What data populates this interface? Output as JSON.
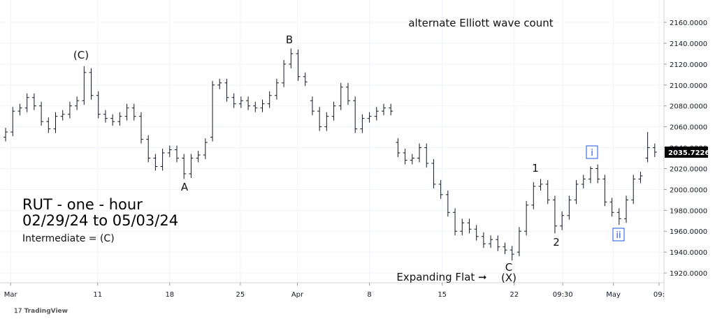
{
  "chart_data": {
    "type": "ohlc",
    "title": "alternate Elliott wave count",
    "subtitle": [
      "RUT - one - hour",
      "02/29/24 to 05/03/24",
      "Intermediate = (C)"
    ],
    "annotations": [
      "(C)",
      "A",
      "B",
      "C",
      "Expanding Flat ➞",
      "(X)",
      "1",
      "2",
      "i",
      "ii"
    ],
    "watermark": "TradingView",
    "color": "#131722",
    "grid": true,
    "x": [
      0,
      1,
      2,
      3,
      4,
      5,
      6,
      7,
      8,
      9,
      10,
      11,
      12,
      13,
      14,
      15,
      16,
      17,
      18,
      19,
      20,
      21,
      22,
      23,
      24,
      25,
      26,
      27,
      28,
      29,
      30,
      31,
      32,
      33,
      34,
      35,
      36,
      37,
      38,
      39,
      40,
      41,
      42,
      43,
      44,
      45,
      46,
      47,
      48,
      49,
      50,
      51,
      52,
      53,
      54,
      55,
      56,
      57,
      58,
      59,
      60,
      61,
      62,
      63,
      64,
      65,
      66,
      67,
      68,
      69,
      70,
      71,
      72,
      73,
      74,
      75,
      76,
      77,
      78,
      79,
      80,
      81,
      82,
      83,
      84,
      85,
      86,
      87,
      88,
      89,
      90,
      91
    ],
    "open": [
      2050,
      2055,
      2075,
      2078,
      2088,
      2080,
      2065,
      2058,
      2070,
      2072,
      2080,
      2085,
      2112,
      2090,
      2072,
      2068,
      2065,
      2070,
      2078,
      2070,
      2048,
      2030,
      2022,
      2035,
      2038,
      2030,
      2015,
      2030,
      2033,
      2050,
      2100,
      2102,
      2088,
      2082,
      2085,
      2080,
      2078,
      2082,
      2090,
      2102,
      2120,
      2130,
      2108,
      2085,
      2075,
      2060,
      2070,
      2080,
      2098,
      2085,
      2058,
      2068,
      2070,
      2075,
      2078,
      2045,
      2035,
      2028,
      2030,
      2040,
      2025,
      2005,
      1995,
      1978,
      1960,
      1968,
      1962,
      1955,
      1948,
      1952,
      1945,
      1942,
      1940,
      1960,
      1985,
      2003,
      2005,
      1990,
      1965,
      1975,
      1990,
      2005,
      2010,
      2020,
      2010,
      1988,
      1978,
      1972,
      1990,
      2010,
      2030,
      2040
    ],
    "high": [
      2059,
      2079,
      2082,
      2092,
      2092,
      2084,
      2069,
      2074,
      2076,
      2084,
      2089,
      2118,
      2116,
      2094,
      2076,
      2072,
      2074,
      2082,
      2082,
      2074,
      2052,
      2034,
      2039,
      2042,
      2042,
      2034,
      2034,
      2037,
      2049,
      2104,
      2106,
      2106,
      2092,
      2089,
      2089,
      2084,
      2086,
      2094,
      2106,
      2124,
      2135,
      2134,
      2112,
      2089,
      2079,
      2074,
      2084,
      2102,
      2102,
      2089,
      2072,
      2074,
      2079,
      2082,
      2082,
      2049,
      2039,
      2034,
      2044,
      2044,
      2029,
      2009,
      1999,
      1982,
      1972,
      1972,
      1966,
      1959,
      1956,
      1956,
      1949,
      1946,
      1964,
      1989,
      2007,
      2010,
      2009,
      1994,
      1979,
      1994,
      2009,
      2014,
      2022,
      2024,
      2014,
      1992,
      1982,
      1994,
      2014,
      2017,
      2055,
      2044
    ],
    "low": [
      2046,
      2051,
      2071,
      2074,
      2076,
      2061,
      2054,
      2054,
      2066,
      2068,
      2076,
      2081,
      2086,
      2068,
      2064,
      2061,
      2061,
      2066,
      2066,
      2044,
      2026,
      2018,
      2018,
      2031,
      2026,
      2010,
      2011,
      2026,
      2029,
      2046,
      2096,
      2084,
      2078,
      2078,
      2076,
      2074,
      2074,
      2078,
      2086,
      2098,
      2116,
      2104,
      2099,
      2071,
      2056,
      2056,
      2066,
      2076,
      2081,
      2054,
      2054,
      2064,
      2066,
      2071,
      2071,
      2031,
      2024,
      2024,
      2026,
      2021,
      2001,
      1991,
      1974,
      1956,
      1956,
      1958,
      1951,
      1944,
      1944,
      1941,
      1938,
      1932,
      1936,
      1956,
      1981,
      1999,
      1986,
      1958,
      1961,
      1971,
      1986,
      2001,
      2006,
      2006,
      1984,
      1974,
      1966,
      1968,
      1986,
      2006,
      2026,
      2031
    ],
    "close": [
      2055,
      2075,
      2078,
      2088,
      2080,
      2065,
      2058,
      2070,
      2072,
      2080,
      2085,
      2112,
      2090,
      2072,
      2068,
      2065,
      2070,
      2078,
      2070,
      2048,
      2030,
      2022,
      2035,
      2038,
      2030,
      2015,
      2030,
      2033,
      2045,
      2100,
      2102,
      2088,
      2082,
      2085,
      2080,
      2078,
      2082,
      2090,
      2102,
      2120,
      2130,
      2108,
      2103,
      2075,
      2060,
      2070,
      2080,
      2098,
      2085,
      2058,
      2068,
      2070,
      2075,
      2078,
      2075,
      2035,
      2028,
      2030,
      2040,
      2025,
      2005,
      1995,
      1978,
      1960,
      1968,
      1962,
      1955,
      1948,
      1952,
      1945,
      1942,
      1938,
      1960,
      1985,
      2003,
      2005,
      1990,
      1965,
      1975,
      1990,
      2005,
      2010,
      2020,
      2010,
      1988,
      1978,
      1972,
      1990,
      2010,
      2013,
      2040,
      2035.7226
    ],
    "xlim": [
      -0.3,
      91.8
    ],
    "ylim": [
      1910.7,
      2181.4
    ],
    "xticks": [
      {
        "value": 0.7,
        "label": "Mar"
      },
      {
        "value": 12.9,
        "label": "11"
      },
      {
        "value": 23,
        "label": "18"
      },
      {
        "value": 32.9,
        "label": "25"
      },
      {
        "value": 40.9,
        "label": "Apr"
      },
      {
        "value": 51,
        "label": "8"
      },
      {
        "value": 61.2,
        "label": "15"
      },
      {
        "value": 71.3,
        "label": "22"
      },
      {
        "value": 78.1,
        "label": "09:30"
      },
      {
        "value": 85.2,
        "label": "May"
      },
      {
        "value": 91.6,
        "label": "09:"
      }
    ],
    "yticks": [
      {
        "value": 1920,
        "label": "1920.0000"
      },
      {
        "value": 1940,
        "label": "1940.0000"
      },
      {
        "value": 1960,
        "label": "1960.0000"
      },
      {
        "value": 1980,
        "label": "1980.0000"
      },
      {
        "value": 2000,
        "label": "2000.0000"
      },
      {
        "value": 2020,
        "label": "2020.0000"
      },
      {
        "value": 2040,
        "label": "2040.0000"
      },
      {
        "value": 2060,
        "label": "2060.0000"
      },
      {
        "value": 2080,
        "label": "2080.0000"
      },
      {
        "value": 2100,
        "label": "2100.0000"
      },
      {
        "value": 2120,
        "label": "2120.0000"
      },
      {
        "value": 2140,
        "label": "2140.0000"
      },
      {
        "value": 2160,
        "label": "2160.0000"
      }
    ]
  }
}
